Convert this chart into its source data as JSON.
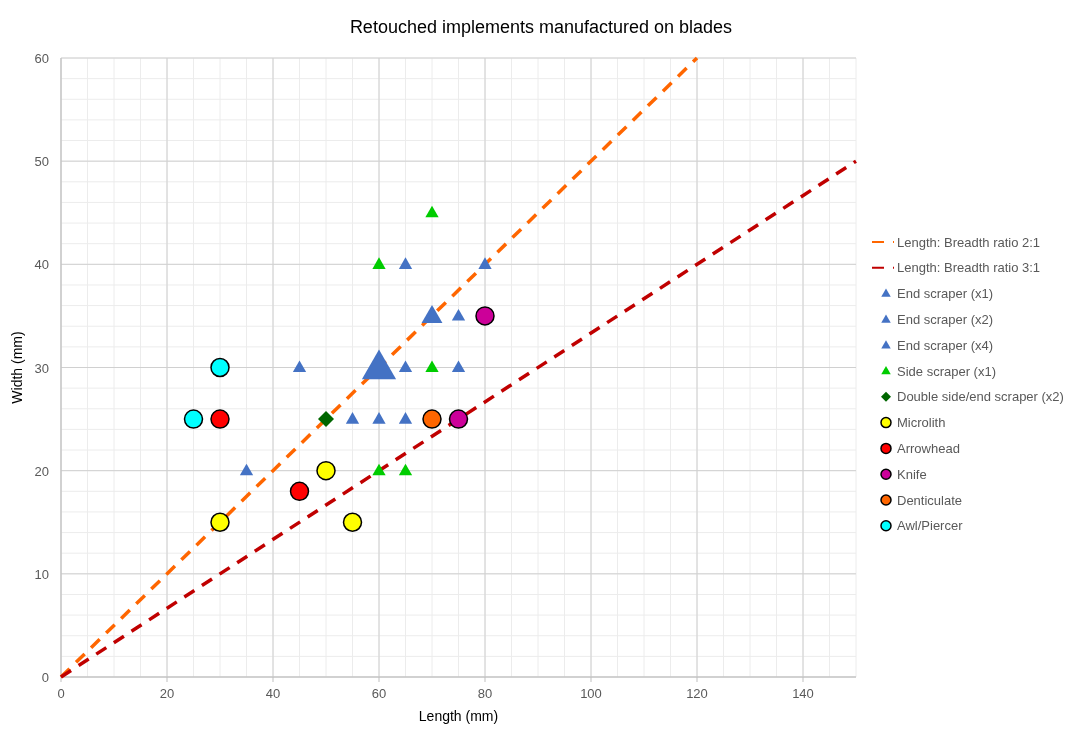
{
  "chart_data": {
    "type": "scatter",
    "title": "Retouched implements manufactured on blades",
    "xlabel": "Length (mm)",
    "ylabel": "Width (mm)",
    "xlim": [
      0,
      150
    ],
    "ylim": [
      0,
      60
    ],
    "xticks": [
      0,
      20,
      40,
      60,
      80,
      100,
      120,
      140
    ],
    "yticks": [
      0,
      10,
      20,
      30,
      40,
      50,
      60
    ],
    "grid": true,
    "legend": "right",
    "series": [
      {
        "name": "Length: Breadth ratio 2:1",
        "type": "line",
        "color": "#ff6600",
        "line_style": "dashed",
        "marker": "none",
        "x": [
          0,
          120
        ],
        "values": [
          0,
          60
        ]
      },
      {
        "name": "Length: Breadth ratio 3:1",
        "type": "line",
        "color": "#c00000",
        "line_style": "dashed",
        "marker": "none",
        "x": [
          0,
          150
        ],
        "values": [
          0,
          50
        ]
      },
      {
        "name": "End scraper (x1)",
        "color": "#4472c4",
        "marker": "triangle",
        "x": [
          35,
          45,
          55,
          60,
          65,
          65,
          65,
          75,
          75,
          80
        ],
        "values": [
          20,
          30,
          25,
          25,
          25,
          30,
          40,
          30,
          35,
          40
        ]
      },
      {
        "name": "End scraper (x2)",
        "color": "#4472c4",
        "marker": "triangle",
        "x": [
          70
        ],
        "values": [
          35
        ]
      },
      {
        "name": "End scraper (x4)",
        "color": "#4472c4",
        "marker": "triangle",
        "x": [
          60
        ],
        "values": [
          30
        ]
      },
      {
        "name": "Side scraper (x1)",
        "color": "#00cc00",
        "marker": "triangle",
        "x": [
          60,
          70,
          70,
          60,
          65
        ],
        "values": [
          40,
          45,
          30,
          20,
          20
        ]
      },
      {
        "name": "Double side/end scraper (x2)",
        "color": "#006600",
        "marker": "diamond",
        "x": [
          50
        ],
        "values": [
          25
        ]
      },
      {
        "name": "Microlith",
        "color": "#ffff00",
        "marker": "circle",
        "x": [
          30,
          50,
          55
        ],
        "values": [
          15,
          20,
          15
        ]
      },
      {
        "name": "Arrowhead",
        "color": "#ff0000",
        "marker": "circle",
        "x": [
          30,
          45
        ],
        "values": [
          25,
          18
        ]
      },
      {
        "name": "Knife",
        "color": "#cc0099",
        "marker": "circle",
        "x": [
          80,
          75
        ],
        "values": [
          35,
          25
        ]
      },
      {
        "name": "Denticulate",
        "color": "#ff6600",
        "marker": "circle",
        "x": [
          70
        ],
        "values": [
          25
        ]
      },
      {
        "name": "Awl/Piercer",
        "color": "#00ffff",
        "marker": "circle",
        "x": [
          25,
          30
        ],
        "values": [
          25,
          30
        ]
      }
    ]
  }
}
